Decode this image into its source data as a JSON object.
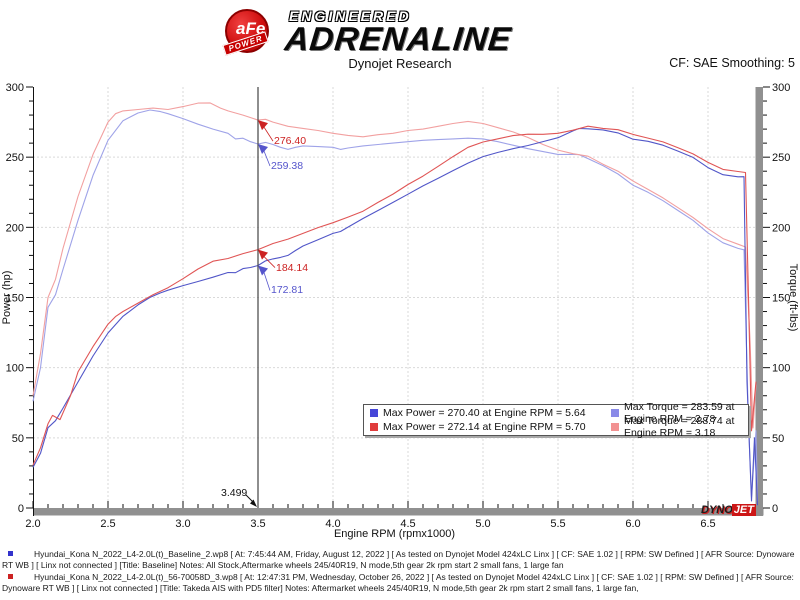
{
  "header": {
    "title": "Dynojet Research",
    "smoothing": "CF: SAE Smoothing: 5",
    "logo": {
      "brand": "aFe",
      "power": "POWER",
      "engineered": "ENGINEERED",
      "adrenaline": "ADRENALINE"
    }
  },
  "branding": {
    "dyno": "DYNO",
    "jet": "JET"
  },
  "chart_data": {
    "type": "line",
    "xlabel": "Engine RPM (rpmx1000)",
    "ylabel_left": "Power (hp)",
    "ylabel_right": "Torque (ft-lbs)",
    "xlim": [
      2.0,
      6.82
    ],
    "ylim": [
      0,
      300
    ],
    "x_ticks": [
      "2.0",
      "2.5",
      "3.0",
      "3.5",
      "4.0",
      "4.5",
      "5.0",
      "5.5",
      "6.0",
      "6.5"
    ],
    "y_ticks": [
      0,
      50,
      100,
      150,
      200,
      250,
      300
    ],
    "grid": "dotted",
    "cursor": {
      "x": 3.5,
      "label": "3.499"
    },
    "callouts": [
      {
        "label": "276.40",
        "x": 3.5,
        "value": 276.4,
        "color": "#cc2222"
      },
      {
        "label": "259.38",
        "x": 3.5,
        "value": 259.38,
        "color": "#5555cc"
      },
      {
        "label": "184.14",
        "x": 3.5,
        "value": 184.14,
        "color": "#cc2222"
      },
      {
        "label": "172.81",
        "x": 3.5,
        "value": 172.81,
        "color": "#5555cc"
      }
    ],
    "series": [
      {
        "name": "baseline_torque",
        "run": "Baseline",
        "unit": "ft-lbs",
        "color": "#9fa3e8",
        "points": [
          [
            2.0,
            76
          ],
          [
            2.05,
            100
          ],
          [
            2.1,
            143
          ],
          [
            2.15,
            152
          ],
          [
            2.2,
            170
          ],
          [
            2.3,
            205
          ],
          [
            2.4,
            237
          ],
          [
            2.5,
            262
          ],
          [
            2.6,
            276
          ],
          [
            2.7,
            281.5
          ],
          [
            2.78,
            283.6
          ],
          [
            2.85,
            282.5
          ],
          [
            2.9,
            281
          ],
          [
            3.0,
            277.5
          ],
          [
            3.1,
            273.5
          ],
          [
            3.2,
            270
          ],
          [
            3.3,
            267
          ],
          [
            3.35,
            263
          ],
          [
            3.4,
            263.5
          ],
          [
            3.45,
            261
          ],
          [
            3.5,
            259.4
          ],
          [
            3.55,
            260.5
          ],
          [
            3.6,
            259
          ],
          [
            3.65,
            257
          ],
          [
            3.7,
            255.5
          ],
          [
            3.75,
            257
          ],
          [
            3.8,
            258
          ],
          [
            3.9,
            257.5
          ],
          [
            4.0,
            257
          ],
          [
            4.05,
            255.5
          ],
          [
            4.1,
            256.5
          ],
          [
            4.2,
            258
          ],
          [
            4.3,
            259
          ],
          [
            4.4,
            260
          ],
          [
            4.5,
            261
          ],
          [
            4.6,
            262
          ],
          [
            4.7,
            262.5
          ],
          [
            4.8,
            263
          ],
          [
            4.9,
            263.5
          ],
          [
            5.0,
            263
          ],
          [
            5.1,
            261
          ],
          [
            5.2,
            258.5
          ],
          [
            5.3,
            256
          ],
          [
            5.4,
            254
          ],
          [
            5.5,
            252
          ],
          [
            5.6,
            252
          ],
          [
            5.64,
            251.8
          ],
          [
            5.7,
            249
          ],
          [
            5.8,
            244
          ],
          [
            5.9,
            238
          ],
          [
            6.0,
            230
          ],
          [
            6.1,
            225
          ],
          [
            6.2,
            219
          ],
          [
            6.3,
            212
          ],
          [
            6.4,
            205
          ],
          [
            6.5,
            196
          ],
          [
            6.6,
            189
          ],
          [
            6.7,
            185
          ],
          [
            6.74,
            184
          ],
          [
            6.77,
            60
          ],
          [
            6.79,
            8
          ],
          [
            6.82,
            55
          ],
          [
            6.83,
            5
          ]
        ]
      },
      {
        "name": "takeda_torque",
        "run": "Takeda AIS with PD5 filter",
        "unit": "ft-lbs",
        "color": "#f2a0a0",
        "points": [
          [
            2.0,
            80
          ],
          [
            2.05,
            110
          ],
          [
            2.1,
            150
          ],
          [
            2.15,
            163
          ],
          [
            2.2,
            185
          ],
          [
            2.3,
            222
          ],
          [
            2.4,
            252
          ],
          [
            2.5,
            275
          ],
          [
            2.55,
            281
          ],
          [
            2.6,
            283
          ],
          [
            2.7,
            284
          ],
          [
            2.8,
            285
          ],
          [
            2.9,
            284
          ],
          [
            3.0,
            286
          ],
          [
            3.1,
            288.5
          ],
          [
            3.18,
            288.7
          ],
          [
            3.25,
            285
          ],
          [
            3.3,
            283
          ],
          [
            3.4,
            280
          ],
          [
            3.5,
            276.4
          ],
          [
            3.55,
            277
          ],
          [
            3.6,
            275
          ],
          [
            3.7,
            272
          ],
          [
            3.8,
            270.5
          ],
          [
            3.9,
            269
          ],
          [
            4.0,
            267
          ],
          [
            4.1,
            265.5
          ],
          [
            4.2,
            264.5
          ],
          [
            4.3,
            266
          ],
          [
            4.4,
            267
          ],
          [
            4.5,
            269
          ],
          [
            4.6,
            270
          ],
          [
            4.7,
            272
          ],
          [
            4.8,
            274
          ],
          [
            4.9,
            275.5
          ],
          [
            5.0,
            274
          ],
          [
            5.1,
            271
          ],
          [
            5.2,
            268
          ],
          [
            5.3,
            264
          ],
          [
            5.4,
            259
          ],
          [
            5.5,
            255
          ],
          [
            5.6,
            252.5
          ],
          [
            5.7,
            250.7
          ],
          [
            5.8,
            245
          ],
          [
            5.9,
            240
          ],
          [
            6.0,
            233
          ],
          [
            6.1,
            227
          ],
          [
            6.2,
            221
          ],
          [
            6.3,
            214
          ],
          [
            6.4,
            207
          ],
          [
            6.5,
            199
          ],
          [
            6.6,
            192
          ],
          [
            6.7,
            188
          ],
          [
            6.75,
            186
          ],
          [
            6.78,
            120
          ],
          [
            6.8,
            57
          ],
          [
            6.82,
            88
          ]
        ]
      },
      {
        "name": "baseline_power",
        "run": "Baseline",
        "unit": "hp",
        "color": "#5156c8",
        "points": [
          [
            2.0,
            28.9
          ],
          [
            2.05,
            39
          ],
          [
            2.1,
            57.2
          ],
          [
            2.15,
            62.2
          ],
          [
            2.2,
            71.2
          ],
          [
            2.3,
            89.8
          ],
          [
            2.4,
            108.3
          ],
          [
            2.5,
            124.7
          ],
          [
            2.6,
            136.6
          ],
          [
            2.7,
            144.7
          ],
          [
            2.78,
            150.1
          ],
          [
            2.85,
            153.3
          ],
          [
            2.9,
            155.2
          ],
          [
            3.0,
            158.5
          ],
          [
            3.1,
            161.4
          ],
          [
            3.2,
            164.5
          ],
          [
            3.3,
            167.8
          ],
          [
            3.35,
            167.7
          ],
          [
            3.4,
            170.6
          ],
          [
            3.45,
            171.4
          ],
          [
            3.5,
            172.8
          ],
          [
            3.55,
            176.1
          ],
          [
            3.6,
            177.5
          ],
          [
            3.65,
            178.6
          ],
          [
            3.7,
            180
          ],
          [
            3.75,
            183.5
          ],
          [
            3.8,
            186.7
          ],
          [
            3.9,
            191.2
          ],
          [
            4.0,
            195.7
          ],
          [
            4.05,
            197
          ],
          [
            4.1,
            200.2
          ],
          [
            4.2,
            206.3
          ],
          [
            4.3,
            212
          ],
          [
            4.4,
            217.8
          ],
          [
            4.5,
            223.6
          ],
          [
            4.6,
            229.5
          ],
          [
            4.7,
            234.9
          ],
          [
            4.8,
            240.4
          ],
          [
            4.9,
            245.8
          ],
          [
            5.0,
            250.4
          ],
          [
            5.1,
            253.4
          ],
          [
            5.2,
            256
          ],
          [
            5.3,
            258.3
          ],
          [
            5.4,
            261.1
          ],
          [
            5.5,
            263.9
          ],
          [
            5.6,
            268.7
          ],
          [
            5.64,
            270.4
          ],
          [
            5.7,
            270.2
          ],
          [
            5.8,
            269.4
          ],
          [
            5.9,
            267.3
          ],
          [
            6.0,
            262.8
          ],
          [
            6.1,
            261.3
          ],
          [
            6.2,
            258.5
          ],
          [
            6.3,
            254.3
          ],
          [
            6.4,
            249.8
          ],
          [
            6.5,
            242.6
          ],
          [
            6.6,
            237.5
          ],
          [
            6.7,
            236
          ],
          [
            6.74,
            236.1
          ],
          [
            6.76,
            90
          ],
          [
            6.79,
            5
          ],
          [
            6.81,
            50
          ],
          [
            6.83,
            2
          ]
        ]
      },
      {
        "name": "takeda_power",
        "run": "Takeda AIS with PD5 filter",
        "unit": "hp",
        "color": "#e05555",
        "points": [
          [
            2.0,
            30.5
          ],
          [
            2.05,
            42.9
          ],
          [
            2.1,
            60
          ],
          [
            2.13,
            66
          ],
          [
            2.18,
            63
          ],
          [
            2.25,
            80
          ],
          [
            2.3,
            97
          ],
          [
            2.4,
            115
          ],
          [
            2.5,
            131
          ],
          [
            2.55,
            136.4
          ],
          [
            2.6,
            140
          ],
          [
            2.7,
            146
          ],
          [
            2.8,
            152
          ],
          [
            2.9,
            157
          ],
          [
            3.0,
            163.4
          ],
          [
            3.1,
            170.3
          ],
          [
            3.2,
            175.9
          ],
          [
            3.3,
            177.8
          ],
          [
            3.4,
            181.3
          ],
          [
            3.5,
            184.1
          ],
          [
            3.6,
            188.5
          ],
          [
            3.7,
            191.6
          ],
          [
            3.8,
            195.7
          ],
          [
            3.9,
            199.8
          ],
          [
            4.0,
            203.3
          ],
          [
            4.1,
            207.3
          ],
          [
            4.2,
            211.5
          ],
          [
            4.3,
            217.8
          ],
          [
            4.4,
            223.7
          ],
          [
            4.5,
            230.5
          ],
          [
            4.6,
            236.5
          ],
          [
            4.7,
            243.4
          ],
          [
            4.8,
            250.4
          ],
          [
            4.9,
            257
          ],
          [
            5.0,
            260.8
          ],
          [
            5.1,
            263.1
          ],
          [
            5.2,
            265.4
          ],
          [
            5.3,
            266.4
          ],
          [
            5.4,
            266.3
          ],
          [
            5.5,
            267
          ],
          [
            5.6,
            269.2
          ],
          [
            5.7,
            272.1
          ],
          [
            5.8,
            270.5
          ],
          [
            5.9,
            269.6
          ],
          [
            6.0,
            266.2
          ],
          [
            6.1,
            263.6
          ],
          [
            6.2,
            260.9
          ],
          [
            6.3,
            256.7
          ],
          [
            6.4,
            252.3
          ],
          [
            6.5,
            246.3
          ],
          [
            6.6,
            241.3
          ],
          [
            6.7,
            239.8
          ],
          [
            6.75,
            239.1
          ],
          [
            6.77,
            150
          ],
          [
            6.79,
            55
          ],
          [
            6.82,
            90
          ]
        ]
      }
    ],
    "legend": {
      "rows": [
        {
          "power_color": "#4646d8",
          "power_text": "Max Power = 270.40 at Engine RPM = 5.64",
          "torque_color": "#8a8ae8",
          "torque_text": "Max Torque = 283.59 at Engine RPM = 2.78"
        },
        {
          "power_color": "#e03c3c",
          "power_text": "Max Power = 272.14 at Engine RPM = 5.70",
          "torque_color": "#f29292",
          "torque_text": "Max Torque = 288.74 at Engine RPM = 3.18"
        }
      ]
    }
  },
  "footer": {
    "runs": [
      {
        "color": "#3333cc",
        "text": "Hyundai_Kona N_2022_L4-2.0L(t)_Baseline_2.wp8 [ At: 7:45:44 AM, Friday, August 12, 2022 ] [ As tested on Dynojet Model 424xLC Linx ] [ CF: SAE 1.02 ] [ RPM: SW Defined ] [ AFR Source: Dynoware RT WB ] [ Linx not connected ] [Title: Baseline]  Notes: All Stock,Aftermarke wheels 245/40R19, N mode,5th gear 2k rpm start 2 small fans, 1 large fan"
      },
      {
        "color": "#cc2222",
        "text": "Hyundai_Kona N_2022_L4-2.0L(t)_56-70058D_3.wp8 [ At: 12:47:31 PM, Wednesday, October 26, 2022 ] [ As tested on Dynojet Model 424xLC Linx ] [ CF: SAE 1.02 ] [ RPM: SW Defined ] [ AFR Source: Dynoware RT WB ] [ Linx not connected ] [Title: Takeda AIS with PD5 filter]  Notes:  Aftermarket wheels 245/40R19, N mode,5th gear 2k rpm start 2 small fans, 1 large fan,"
      }
    ]
  }
}
